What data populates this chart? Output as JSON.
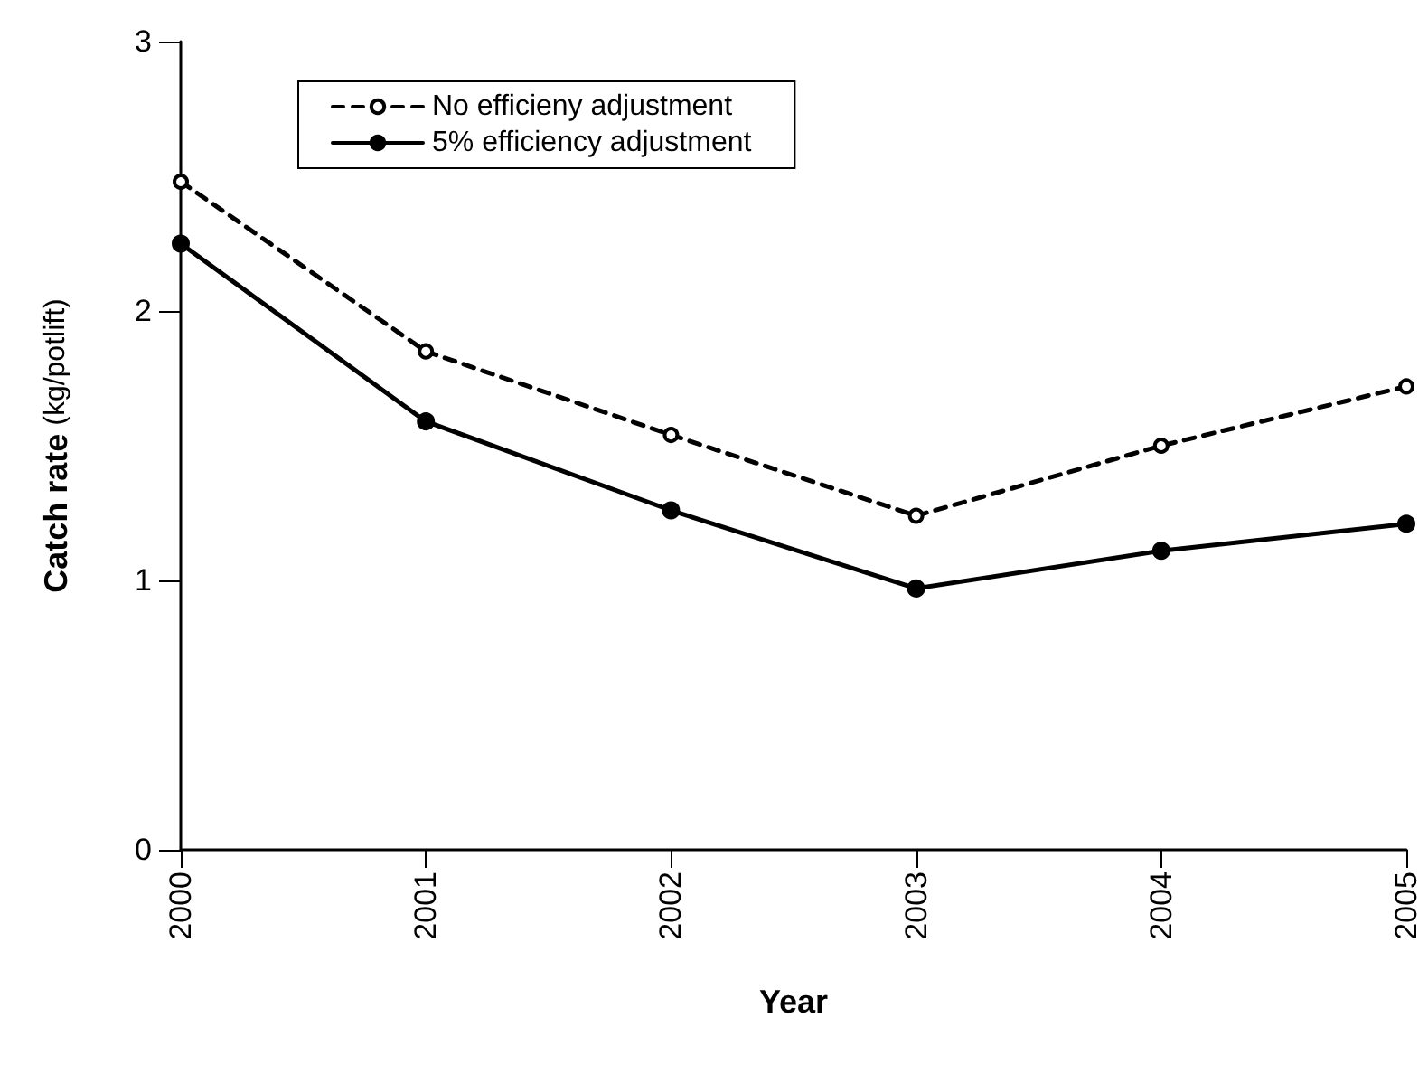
{
  "chart_data": {
    "type": "line",
    "xlabel": "Year",
    "ylabel": "Catch rate (kg/potlift)",
    "categories": [
      "2000",
      "2001",
      "2002",
      "2003",
      "2004",
      "2005"
    ],
    "series": [
      {
        "name": "No efficieny adjustment",
        "color": "#000000",
        "line_style": "dashed",
        "values": [
          2.48,
          1.85,
          1.54,
          1.24,
          1.5,
          1.72
        ]
      },
      {
        "name": "5% efficiency adjustment",
        "color": "#000000",
        "line_style": "solid",
        "values": [
          2.25,
          1.59,
          1.26,
          0.97,
          1.11,
          1.21
        ]
      }
    ],
    "ylim": [
      0,
      3
    ],
    "yticks": [
      0,
      1,
      2,
      3
    ],
    "grid": false,
    "legend": "top left",
    "marker": "circle"
  }
}
